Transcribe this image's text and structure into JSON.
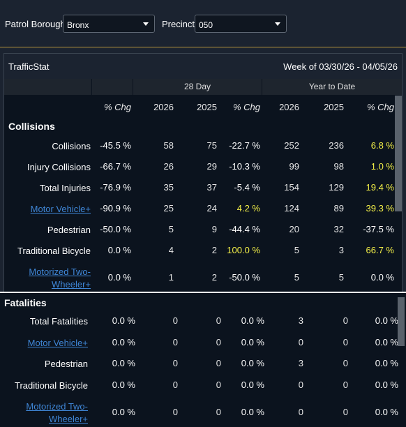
{
  "filters": {
    "borough_label": "Patrol Borough:",
    "borough_value": "Bronx",
    "precinct_label": "Precinct:",
    "precinct_value": "050"
  },
  "panel": {
    "title": "TrafficStat",
    "week": "Week of 03/30/26 - 04/05/26"
  },
  "groups": {
    "day28": "28 Day",
    "ytd": "Year to Date"
  },
  "columns": [
    "% Chg",
    "2026",
    "2025",
    "% Chg",
    "2026",
    "2025",
    "% Chg"
  ],
  "colors": {
    "highlight": "#f4f048",
    "link": "#3f86d6",
    "accent_border": "#b9973d"
  },
  "collisions": {
    "title": "Collisions",
    "rows": [
      {
        "label": "Collisions",
        "link": false,
        "wk": "-45.5 %",
        "d26": "58",
        "d25": "75",
        "dchg": "-22.7 %",
        "y26": "252",
        "y25": "236",
        "ychg": "6.8 %"
      },
      {
        "label": "Injury Collisions",
        "link": false,
        "wk": "-66.7 %",
        "d26": "26",
        "d25": "29",
        "dchg": "-10.3 %",
        "y26": "99",
        "y25": "98",
        "ychg": "1.0 %"
      },
      {
        "label": "Total Injuries",
        "link": false,
        "wk": "-76.9 %",
        "d26": "35",
        "d25": "37",
        "dchg": "-5.4 %",
        "y26": "154",
        "y25": "129",
        "ychg": "19.4 %"
      },
      {
        "label": "Motor Vehicle+",
        "link": true,
        "wk": "-90.9 %",
        "d26": "25",
        "d25": "24",
        "dchg": "4.2 %",
        "y26": "124",
        "y25": "89",
        "ychg": "39.3 %"
      },
      {
        "label": "Pedestrian",
        "link": false,
        "wk": "-50.0 %",
        "d26": "5",
        "d25": "9",
        "dchg": "-44.4 %",
        "y26": "20",
        "y25": "32",
        "ychg": "-37.5 %"
      },
      {
        "label": "Traditional Bicycle",
        "link": false,
        "wk": "0.0 %",
        "d26": "4",
        "d25": "2",
        "dchg": "100.0 %",
        "y26": "5",
        "y25": "3",
        "ychg": "66.7 %"
      },
      {
        "label1": "Motorized Two-",
        "label2": "Wheeler+",
        "link": true,
        "wk": "0.0 %",
        "d26": "1",
        "d25": "2",
        "dchg": "-50.0 %",
        "y26": "5",
        "y25": "5",
        "ychg": "0.0 %"
      }
    ]
  },
  "fatalities": {
    "title": "Fatalities",
    "rows": [
      {
        "label": "Total Fatalities",
        "link": false,
        "wk": "0.0 %",
        "d26": "0",
        "d25": "0",
        "dchg": "0.0 %",
        "y26": "3",
        "y25": "0",
        "ychg": "0.0 %"
      },
      {
        "label": "Motor Vehicle+",
        "link": true,
        "wk": "0.0 %",
        "d26": "0",
        "d25": "0",
        "dchg": "0.0 %",
        "y26": "0",
        "y25": "0",
        "ychg": "0.0 %"
      },
      {
        "label": "Pedestrian",
        "link": false,
        "wk": "0.0 %",
        "d26": "0",
        "d25": "0",
        "dchg": "0.0 %",
        "y26": "3",
        "y25": "0",
        "ychg": "0.0 %"
      },
      {
        "label": "Traditional Bicycle",
        "link": false,
        "wk": "0.0 %",
        "d26": "0",
        "d25": "0",
        "dchg": "0.0 %",
        "y26": "0",
        "y25": "0",
        "ychg": "0.0 %"
      },
      {
        "label1": "Motorized Two-",
        "label2": "Wheeler+",
        "link": true,
        "wk": "0.0 %",
        "d26": "0",
        "d25": "0",
        "dchg": "0.0 %",
        "y26": "0",
        "y25": "0",
        "ychg": "0.0 %"
      }
    ]
  }
}
